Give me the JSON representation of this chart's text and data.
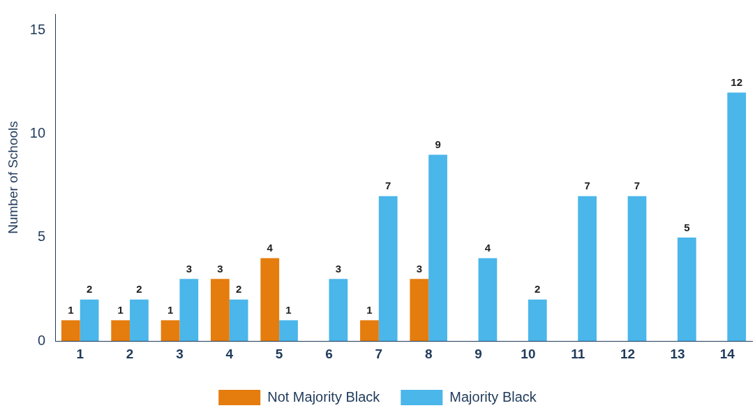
{
  "chart_data": {
    "type": "bar",
    "ylabel": "Number of Schools",
    "categories": [
      "1",
      "2",
      "3",
      "4",
      "5",
      "6",
      "7",
      "8",
      "9",
      "10",
      "11",
      "12",
      "13",
      "14"
    ],
    "series": [
      {
        "name": "Not Majority Black",
        "color": "#e57c0e",
        "values": [
          1,
          1,
          1,
          3,
          4,
          null,
          1,
          3,
          null,
          null,
          null,
          null,
          null,
          null
        ]
      },
      {
        "name": "Majority Black",
        "color": "#4ab6ea",
        "values": [
          2,
          2,
          3,
          2,
          1,
          3,
          7,
          9,
          4,
          2,
          7,
          7,
          5,
          12
        ]
      }
    ],
    "ylim": [
      0,
      15.8
    ],
    "yticks": [
      0,
      5,
      10,
      15
    ],
    "grid": false,
    "legend": "bottom",
    "data_labels": true
  }
}
